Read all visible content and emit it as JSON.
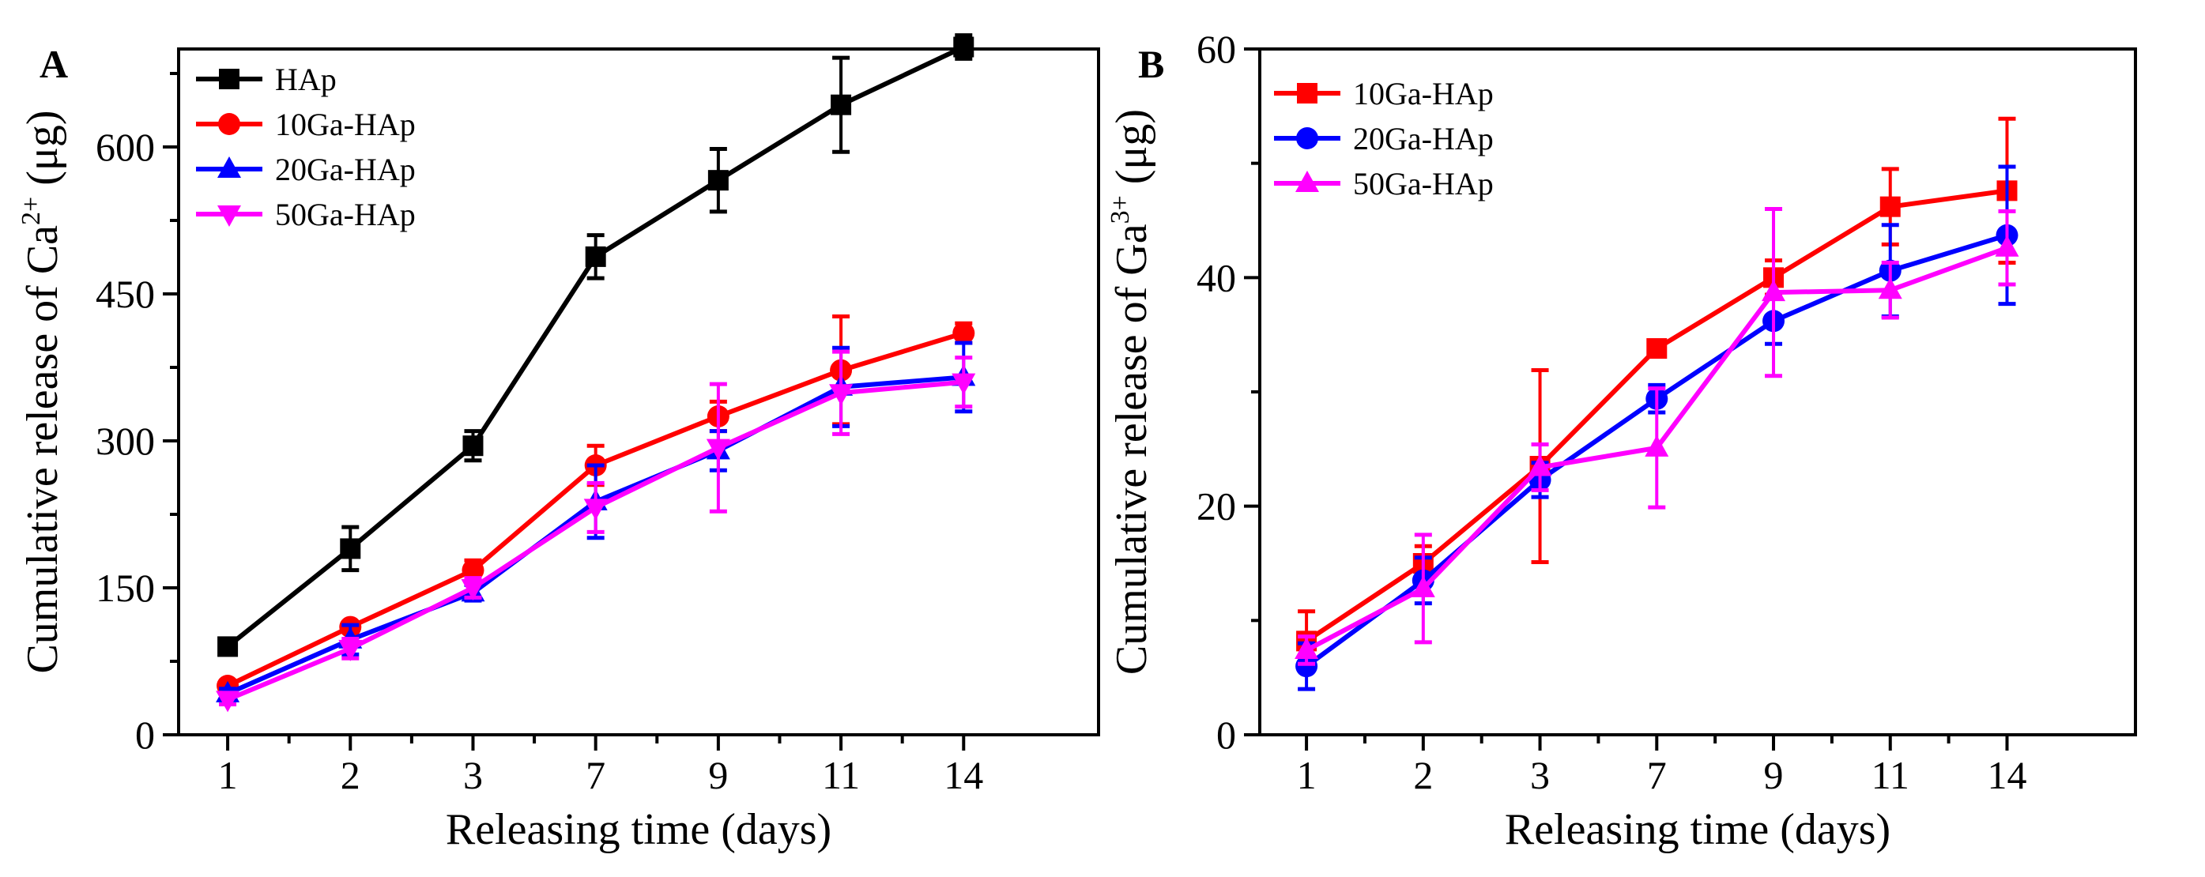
{
  "chart_data": [
    {
      "type": "line",
      "panel_label": "A",
      "categories": [
        "1",
        "2",
        "3",
        "7",
        "9",
        "11",
        "14"
      ],
      "ylabel": {
        "prefix": "Cumulative release of Ca",
        "superscript": "2+",
        "suffix": " (μg)"
      },
      "xlabel": "Releasing time (days)",
      "ylim": [
        0,
        700
      ],
      "yticks": [
        0,
        150,
        300,
        450,
        600
      ],
      "y_minor_step": 75,
      "grid": false,
      "legend_position": "top-left",
      "series": [
        {
          "name": "HAp",
          "color": "#000000",
          "marker": "square",
          "values": [
            90,
            190,
            295,
            488,
            566,
            643,
            702
          ],
          "errors": [
            5,
            22,
            15,
            22,
            32,
            48,
            12
          ]
        },
        {
          "name": "10Ga-HAp",
          "color": "#ff0000",
          "marker": "circle",
          "values": [
            50,
            110,
            168,
            275,
            325,
            372,
            410
          ],
          "errors": [
            5,
            5,
            10,
            20,
            15,
            55,
            10
          ]
        },
        {
          "name": "20Ga-HAp",
          "color": "#0000ff",
          "marker": "triangle-up",
          "values": [
            42,
            97,
            145,
            238,
            290,
            355,
            365
          ],
          "errors": [
            5,
            15,
            8,
            37,
            20,
            40,
            35
          ]
        },
        {
          "name": "50Ga-HAp",
          "color": "#ff00ff",
          "marker": "triangle-down",
          "values": [
            36,
            88,
            150,
            232,
            293,
            349,
            360
          ],
          "errors": [
            5,
            10,
            10,
            25,
            65,
            42,
            25
          ]
        }
      ]
    },
    {
      "type": "line",
      "panel_label": "B",
      "categories": [
        "1",
        "2",
        "3",
        "7",
        "9",
        "11",
        "14"
      ],
      "ylabel": {
        "prefix": "Cumulative release of Ga",
        "superscript": "3+",
        "suffix": " (μg)"
      },
      "xlabel": "Releasing time (days)",
      "ylim": [
        0,
        60
      ],
      "yticks": [
        0,
        20,
        40,
        60
      ],
      "y_minor_step": 10,
      "grid": false,
      "legend_position": "top-left",
      "series": [
        {
          "name": "10Ga-HAp",
          "color": "#ff0000",
          "marker": "square",
          "values": [
            8.2,
            15,
            23.5,
            33.8,
            40,
            46.2,
            47.6
          ],
          "errors": [
            2.6,
            1.5,
            8.4,
            0.5,
            1.5,
            3.3,
            6.3
          ]
        },
        {
          "name": "20Ga-HAp",
          "color": "#0000ff",
          "marker": "circle",
          "values": [
            6,
            13.5,
            22.3,
            29.4,
            36.2,
            40.6,
            43.7
          ],
          "errors": [
            2,
            2,
            1.5,
            1.2,
            2,
            4,
            6
          ]
        },
        {
          "name": "50Ga-HAp",
          "color": "#ff00ff",
          "marker": "triangle-up",
          "values": [
            7.4,
            12.8,
            23.4,
            25.1,
            38.7,
            38.9,
            42.6
          ],
          "errors": [
            1.2,
            4.7,
            2,
            5.2,
            7.3,
            2.4,
            3.2
          ]
        }
      ]
    }
  ]
}
